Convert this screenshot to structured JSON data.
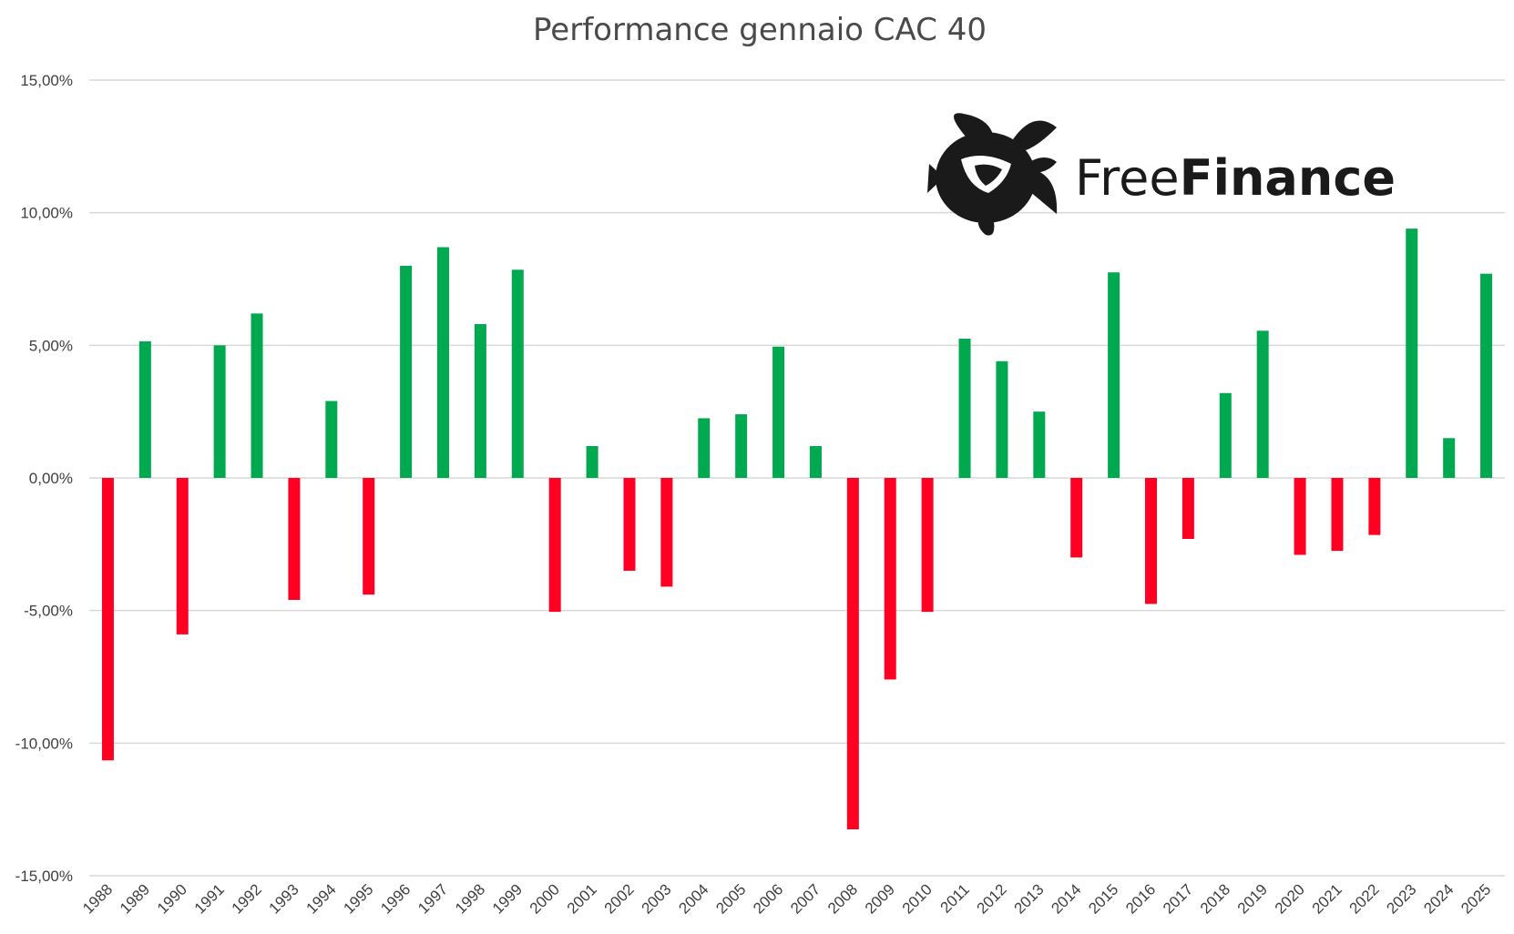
{
  "chart_data": {
    "type": "bar",
    "title": "Performance gennaio CAC 40",
    "xlabel": "",
    "ylabel": "",
    "ylim": [
      -15,
      15
    ],
    "yticks": [
      {
        "value": 15,
        "label": "15,00%"
      },
      {
        "value": 10,
        "label": "10,00%"
      },
      {
        "value": 5,
        "label": "5,00%"
      },
      {
        "value": 0,
        "label": "0,00%"
      },
      {
        "value": -5,
        "label": "-5,00%"
      },
      {
        "value": -10,
        "label": "-10,00%"
      },
      {
        "value": -15,
        "label": "-15,00%"
      }
    ],
    "grid": true,
    "legend": "none",
    "categories": [
      "1988",
      "1989",
      "1990",
      "1991",
      "1992",
      "1993",
      "1994",
      "1995",
      "1996",
      "1997",
      "1998",
      "1999",
      "2000",
      "2001",
      "2002",
      "2003",
      "2004",
      "2005",
      "2006",
      "2007",
      "2008",
      "2009",
      "2010",
      "2011",
      "2012",
      "2013",
      "2014",
      "2015",
      "2016",
      "2017",
      "2018",
      "2019",
      "2020",
      "2021",
      "2022",
      "2023",
      "2024",
      "2025"
    ],
    "values": [
      -10.65,
      5.15,
      -5.9,
      5.0,
      6.2,
      -4.6,
      2.9,
      -4.4,
      8.0,
      8.7,
      5.8,
      7.85,
      -5.05,
      1.2,
      -3.5,
      -4.1,
      2.25,
      2.4,
      4.95,
      1.2,
      -13.25,
      -7.6,
      -5.05,
      5.25,
      4.4,
      2.5,
      -3.0,
      7.75,
      -4.75,
      -2.3,
      3.2,
      5.55,
      -2.9,
      -2.75,
      -2.15,
      9.4,
      1.5,
      7.7
    ],
    "colors": {
      "positive": "#00a84f",
      "negative": "#ff0022",
      "grid": "#d9d9d9"
    }
  },
  "brand": {
    "logo_icon": "turtle-icon",
    "name_light": "Free",
    "name_bold": "Finance",
    "color": "#1a1a1a"
  }
}
